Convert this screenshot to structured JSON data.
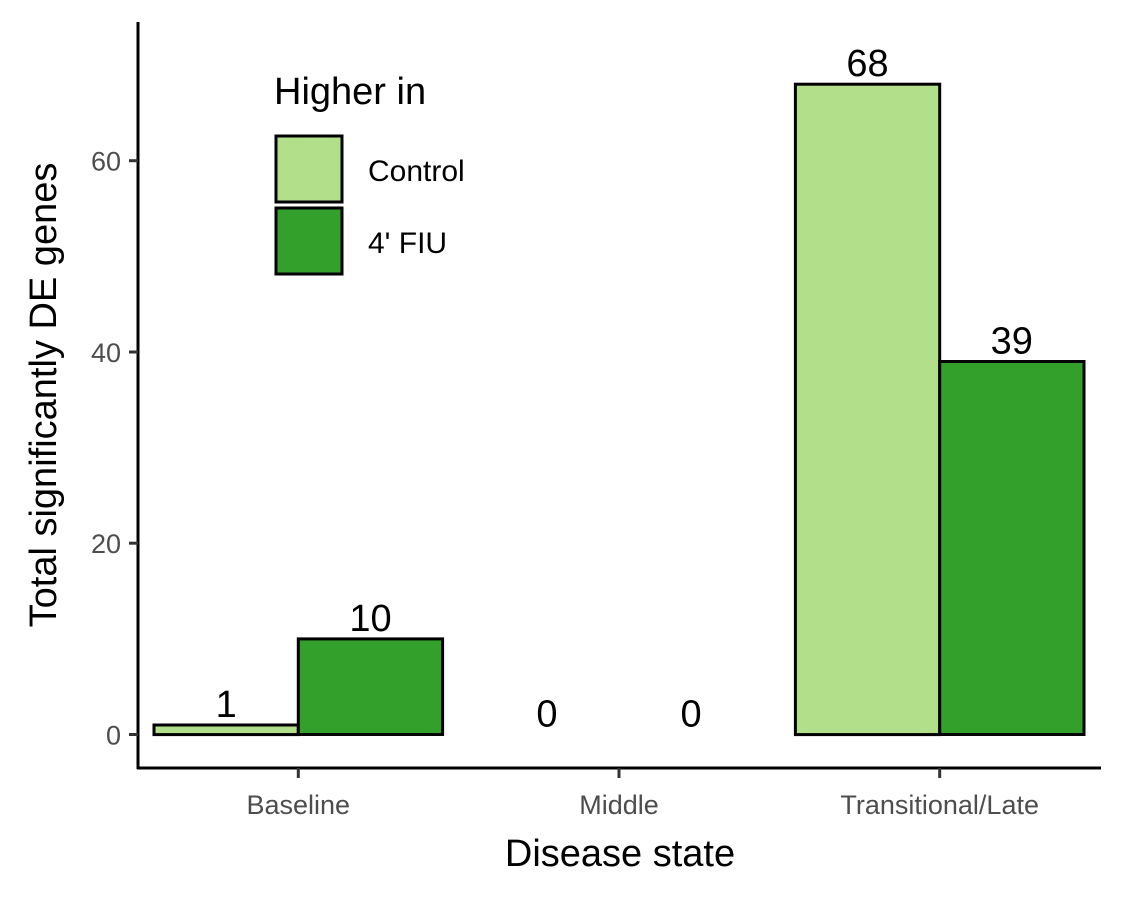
{
  "chart_data": {
    "type": "bar",
    "categories": [
      "Baseline",
      "Middle",
      "Transitional/Late"
    ],
    "series": [
      {
        "name": "Control",
        "values": [
          1,
          0,
          68
        ],
        "color": "#b2df8a"
      },
      {
        "name": "4' FIU",
        "values": [
          10,
          0,
          39
        ],
        "color": "#33a02c"
      }
    ],
    "data_labels": [
      [
        "1",
        "10"
      ],
      [
        "0",
        "0"
      ],
      [
        "68",
        "39"
      ]
    ],
    "title": "",
    "xlabel": "Disease state",
    "ylabel": "Total significantly DE genes",
    "ylim": [
      -3.5,
      74.5
    ],
    "yticks": [
      0,
      20,
      40,
      60
    ],
    "ytick_labels": [
      "0",
      "20",
      "40",
      "60"
    ],
    "grid": false,
    "legend_title": "Higher in",
    "legend_position": "top-left"
  }
}
